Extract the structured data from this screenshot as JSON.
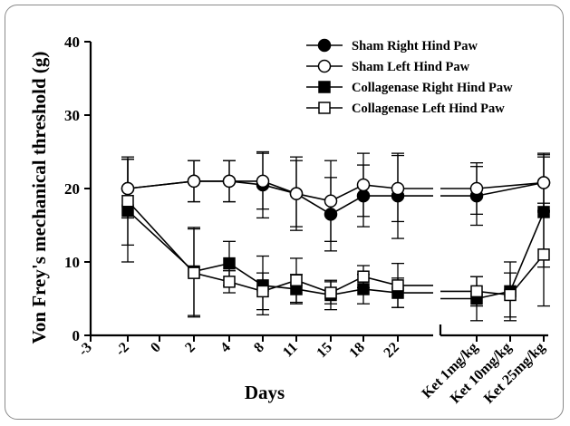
{
  "chart_data": {
    "type": "line",
    "ylabel": "Von Frey's mechanical threshold (g)",
    "xlabel": "Days",
    "ylim": [
      0,
      40
    ],
    "yticks": [
      "0",
      "10",
      "20",
      "30",
      "40"
    ],
    "categories": [
      "-3",
      "-2",
      "0",
      "2",
      "4",
      "8",
      "11",
      "15",
      "18",
      "22",
      "Ket 1mg/kg",
      "Ket 10mg/kg",
      "Ket 25mg/kg"
    ],
    "legend_position": "top-right",
    "grid": false,
    "series": [
      {
        "name": "Sham Right Hind Paw",
        "marker": "filled-circle",
        "color": "#000000",
        "main_values": [
          {
            "x": "-2",
            "y": 20,
            "err": 4
          },
          {
            "x": "2",
            "y": 21,
            "err": 2.8
          },
          {
            "x": "4",
            "y": 21,
            "err": 2.8
          },
          {
            "x": "8",
            "y": 20.5,
            "err": 4.5
          },
          {
            "x": "11",
            "y": 19.3,
            "err": 5
          },
          {
            "x": "15",
            "y": 16.5,
            "err": 5
          },
          {
            "x": "18",
            "y": 19,
            "err": 4.2
          },
          {
            "x": "22",
            "y": 19,
            "err": 5.8
          }
        ],
        "ket_values": [
          {
            "x": "Ket 1mg/kg",
            "y": 19,
            "err": 4
          },
          {
            "x": "Ket 25mg/kg",
            "y": 20.8,
            "err": 4
          }
        ]
      },
      {
        "name": "Sham Left Hind Paw",
        "marker": "open-circle",
        "color": "#000000",
        "main_values": [
          {
            "x": "-2",
            "y": 20,
            "err": 4
          },
          {
            "x": "2",
            "y": 21,
            "err": 2.8
          },
          {
            "x": "4",
            "y": 21,
            "err": 2.8
          },
          {
            "x": "8",
            "y": 21,
            "err": 3.8
          },
          {
            "x": "11",
            "y": 19.3,
            "err": 4.5
          },
          {
            "x": "15",
            "y": 18.3,
            "err": 5.5
          },
          {
            "x": "18",
            "y": 20.5,
            "err": 4.3
          },
          {
            "x": "22",
            "y": 20,
            "err": 4.5
          }
        ],
        "ket_values": [
          {
            "x": "Ket 1mg/kg",
            "y": 20,
            "err": 3.5
          },
          {
            "x": "Ket 25mg/kg",
            "y": 20.8,
            "err": 3.8
          }
        ]
      },
      {
        "name": "Collagenase Right Hind Paw",
        "marker": "filled-square",
        "color": "#000000",
        "main_values": [
          {
            "x": "-2",
            "y": 17,
            "err": 7
          },
          {
            "x": "2",
            "y": 8.7,
            "err": 6
          },
          {
            "x": "4",
            "y": 9.8,
            "err": 3
          },
          {
            "x": "8",
            "y": 6.8,
            "err": 4
          },
          {
            "x": "11",
            "y": 6.3,
            "err": 2
          },
          {
            "x": "15",
            "y": 5.5,
            "err": 2
          },
          {
            "x": "18",
            "y": 6.3,
            "err": 2
          },
          {
            "x": "22",
            "y": 5.8,
            "err": 2
          }
        ],
        "ket_values": [
          {
            "x": "Ket 1mg/kg",
            "y": 5,
            "err": 3
          },
          {
            "x": "Ket 10mg/kg",
            "y": 6,
            "err": 4
          },
          {
            "x": "Ket 25mg/kg",
            "y": 16.8,
            "err": 7.5
          }
        ]
      },
      {
        "name": "Collagenase Left Hind Paw",
        "marker": "open-square",
        "color": "#000000",
        "main_values": [
          {
            "x": "-2",
            "y": 18.3,
            "err": 6
          },
          {
            "x": "2",
            "y": 8.5,
            "err": 6
          },
          {
            "x": "4",
            "y": 7.3,
            "err": 1.5
          },
          {
            "x": "8",
            "y": 6,
            "err": 2.5
          },
          {
            "x": "11",
            "y": 7.5,
            "err": 3
          },
          {
            "x": "15",
            "y": 5.8,
            "err": 1.5
          },
          {
            "x": "18",
            "y": 8,
            "err": 1.5
          },
          {
            "x": "22",
            "y": 6.8,
            "err": 3
          }
        ],
        "ket_values": [
          {
            "x": "Ket 1mg/kg",
            "y": 6,
            "err": 2
          },
          {
            "x": "Ket 10mg/kg",
            "y": 5.5,
            "err": 3
          },
          {
            "x": "Ket 25mg/kg",
            "y": 11,
            "err": 7
          }
        ]
      }
    ]
  }
}
